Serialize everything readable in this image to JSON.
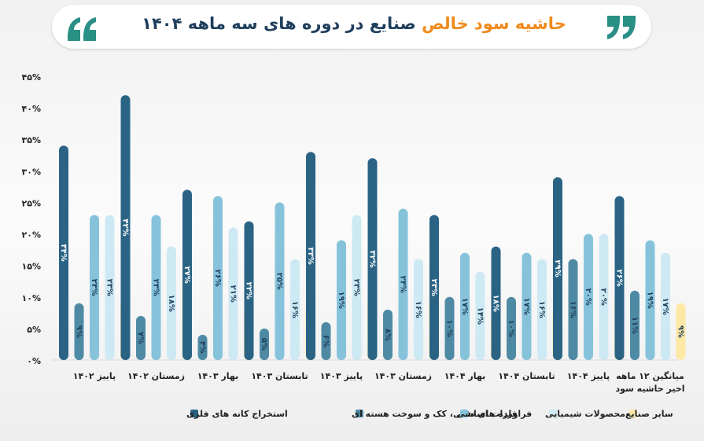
{
  "header": {
    "title_accent": "حاشیه سود خالص",
    "title_main": "صنایع در دوره های سه ماهه ۱۴۰۴"
  },
  "colors": {
    "series": [
      "#2a6384",
      "#4f8aa4",
      "#86c3db",
      "#cde9f3",
      "#fde8a6"
    ],
    "accent": "#f08a1c",
    "quote": "#2a8f84",
    "label_dark": "#1f3f5c"
  },
  "chart_data": {
    "type": "bar",
    "ylim": [
      0,
      45
    ],
    "yticks": [
      "۰%",
      "۵%",
      "۱۰%",
      "۱۵%",
      "۲۰%",
      "۲۵%",
      "۳۰%",
      "۳۵%",
      "۴۰%",
      "۴۵%"
    ],
    "ytick_values": [
      0,
      5,
      10,
      15,
      20,
      25,
      30,
      35,
      40,
      45
    ],
    "categories": [
      [
        "پاییز ۱۴۰۲"
      ],
      [
        "زمستان ۱۴۰۲"
      ],
      [
        "بهار ۱۴۰۳"
      ],
      [
        "تابستان ۱۴۰۳"
      ],
      [
        "پاییز ۱۴۰۳"
      ],
      [
        "زمستان ۱۴۰۳"
      ],
      [
        "بهار ۱۴۰۴"
      ],
      [
        "تابستان ۱۴۰۴"
      ],
      [
        "پاییز ۱۴۰۴"
      ],
      [
        "میانگین ۱۲ ماهه",
        "اخیر حاشیه سود"
      ]
    ],
    "series": [
      {
        "name": "استخراج کانه های فلزی",
        "values": [
          34,
          42,
          27,
          22,
          33,
          32,
          23,
          18,
          29,
          26
        ],
        "labels": [
          "۳۴%",
          "۴۲%",
          "۲۷%",
          "۲۲%",
          "۳۳%",
          "۳۲%",
          "۲۳%",
          "۱۸%",
          "۲۹%",
          "۲۶%"
        ]
      },
      {
        "name": "فراورده های نفتی، کک و سوخت هسته ای",
        "values": [
          9,
          7,
          4,
          5,
          6,
          8,
          10,
          10,
          16,
          11
        ],
        "labels": [
          "۹%",
          "۷%",
          "۴%",
          "۵%",
          "۶%",
          "۸%",
          "۱۰%",
          "۱۰%",
          "۱۶%",
          "۱۱%"
        ]
      },
      {
        "name": "فلزات اساسی",
        "values": [
          23,
          23,
          26,
          25,
          19,
          24,
          17,
          17,
          20,
          19
        ],
        "labels": [
          "۲۳%",
          "۲۳%",
          "۲۶%",
          "۲۵%",
          "۱۹%",
          "۲۴%",
          "۱۷%",
          "۱۷%",
          "۲۰%",
          "۱۹%"
        ]
      },
      {
        "name": "محصولات شیمیایی",
        "values": [
          23,
          18,
          21,
          16,
          23,
          16,
          14,
          16,
          20,
          17
        ],
        "labels": [
          "۲۳%",
          "۱۸%",
          "۲۱%",
          "۱۶%",
          "۲۳%",
          "۱۶%",
          "۱۴%",
          "۱۶%",
          "۲۰%",
          "۱۷%"
        ]
      },
      {
        "name": "سایر صنایع",
        "values": [
          9,
          13,
          8,
          9,
          10,
          10,
          7,
          8,
          10,
          9
        ],
        "labels": [
          "۹%",
          "۱۳%",
          "۸%",
          "۹%",
          "۱۰%",
          "۱۰%",
          "۷%",
          "۸%",
          "۱۰%",
          "۹%"
        ]
      }
    ],
    "legend": [
      "استخراج کانه های فلزی",
      "فراورده های نفتی، کک و سوخت هسته ای",
      "فلزات اساسی",
      "محصولات شیمیایی",
      "سایر صنایع"
    ],
    "legend_position": "bottom",
    "grid": false
  }
}
